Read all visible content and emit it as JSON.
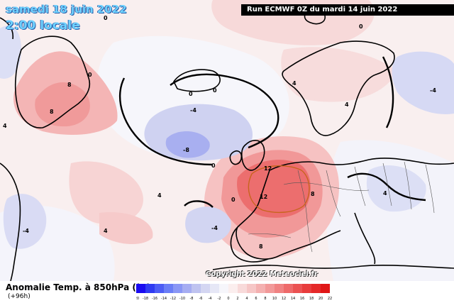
{
  "header": {
    "date": "samedi 18 juin 2022",
    "time": "2:00 locale",
    "run": "Run ECMWF 0Z du mardi 14 juin 2022"
  },
  "copyright": "Copyright 2022 Meteociel.fr",
  "legend": {
    "title": "Anomalie Temp. à 850hPa (°C)",
    "subtitle": "(+96h)",
    "ticks": [
      "-20",
      "-18",
      "-16",
      "-14",
      "-12",
      "-10",
      "-8",
      "-6",
      "-4",
      "-2",
      "0",
      "2",
      "4",
      "6",
      "8",
      "10",
      "12",
      "14",
      "16",
      "18",
      "20",
      "22"
    ],
    "colors": [
      "#1a0cf0",
      "#2f3bf2",
      "#4d5df5",
      "#6b7ef6",
      "#8a97f5",
      "#a6adf2",
      "#bfc3f0",
      "#d4d6f2",
      "#e6e7f6",
      "#f6f6fb",
      "#fbeeee",
      "#f8dada",
      "#f6c6c6",
      "#f4b0b0",
      "#f29999",
      "#f08282",
      "#ee6a6a",
      "#eb5252",
      "#e83c3c",
      "#e52828",
      "#e01616"
    ]
  },
  "contours": [
    {
      "value": "0",
      "kind": "line"
    },
    {
      "value": "4",
      "kind": "line"
    },
    {
      "value": "8",
      "kind": "line"
    },
    {
      "value": "12",
      "kind": "line"
    },
    {
      "value": "-4",
      "kind": "line"
    },
    {
      "value": "-8",
      "kind": "line"
    }
  ],
  "labels": [
    {
      "text": "0",
      "id": "l1"
    },
    {
      "text": "0",
      "id": "l2"
    },
    {
      "text": "0",
      "id": "l3"
    },
    {
      "text": "0",
      "id": "l4"
    },
    {
      "text": "0",
      "id": "l5"
    },
    {
      "text": "0",
      "id": "l6"
    },
    {
      "text": "4",
      "id": "l7"
    },
    {
      "text": "4",
      "id": "l8"
    },
    {
      "text": "4",
      "id": "l9"
    },
    {
      "text": "8",
      "id": "l10"
    },
    {
      "text": "8",
      "id": "l11"
    },
    {
      "text": "8",
      "id": "l12"
    },
    {
      "text": "-4",
      "id": "l13"
    },
    {
      "text": "-8",
      "id": "l14"
    },
    {
      "text": "-4",
      "id": "l15"
    },
    {
      "text": "12",
      "id": "l16"
    },
    {
      "text": "12",
      "id": "l17"
    },
    {
      "text": "8",
      "id": "l18"
    },
    {
      "text": "-4",
      "id": "l19"
    },
    {
      "text": "-4",
      "id": "l20"
    },
    {
      "text": "4",
      "id": "l21"
    },
    {
      "text": "4",
      "id": "l22"
    },
    {
      "text": "4",
      "id": "l23"
    },
    {
      "text": "0",
      "id": "l24"
    }
  ]
}
